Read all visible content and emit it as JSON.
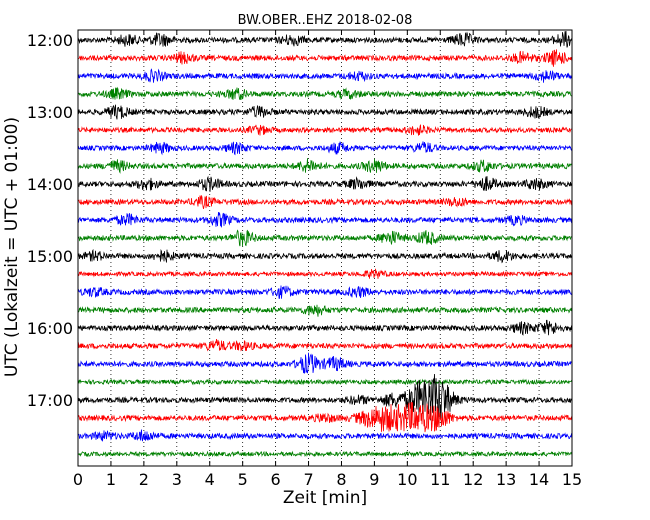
{
  "chart_data": {
    "type": "line",
    "title": "BW.OBER..EHZ 2018-02-08",
    "xlabel": "Zeit  [min]",
    "ylabel": "UTC (Lokalzeit = UTC + 01:00)",
    "xlim": [
      0,
      15
    ],
    "x_ticks": [
      "0",
      "1",
      "2",
      "3",
      "4",
      "5",
      "6",
      "7",
      "8",
      "9",
      "10",
      "11",
      "12",
      "13",
      "14",
      "15"
    ],
    "y_ticks": [
      "12:00",
      "13:00",
      "14:00",
      "15:00",
      "16:00",
      "17:00"
    ],
    "grid": "vertical dotted",
    "trace_colors": [
      "#000000",
      "#ff0000",
      "#0000ff",
      "#008000"
    ],
    "traces": [
      {
        "start": "12:00",
        "amplitude": 1.0,
        "events": [
          [
            1.5,
            2
          ],
          [
            2.5,
            2.5
          ],
          [
            6.5,
            2
          ],
          [
            11.7,
            2.5
          ],
          [
            14.8,
            3
          ]
        ]
      },
      {
        "start": "12:15",
        "amplitude": 1.0,
        "events": [
          [
            3.2,
            2
          ],
          [
            13.5,
            2
          ],
          [
            14.5,
            3
          ]
        ]
      },
      {
        "start": "12:30",
        "amplitude": 1.0,
        "events": [
          [
            2.3,
            2
          ],
          [
            8.5,
            1.5
          ],
          [
            14.2,
            2
          ]
        ]
      },
      {
        "start": "12:45",
        "amplitude": 1.0,
        "events": [
          [
            1.2,
            1.8
          ],
          [
            4.8,
            2
          ],
          [
            8.2,
            1.5
          ]
        ]
      },
      {
        "start": "13:00",
        "amplitude": 1.0,
        "events": [
          [
            1.2,
            2.5
          ],
          [
            5.5,
            2
          ],
          [
            13.9,
            2
          ]
        ]
      },
      {
        "start": "13:15",
        "amplitude": 0.9,
        "events": [
          [
            5.5,
            1.5
          ],
          [
            10.3,
            1.8
          ]
        ]
      },
      {
        "start": "13:30",
        "amplitude": 0.9,
        "events": [
          [
            2.5,
            2
          ],
          [
            4.8,
            2
          ],
          [
            7.9,
            2
          ],
          [
            10.5,
            2
          ]
        ]
      },
      {
        "start": "13:45",
        "amplitude": 1.0,
        "events": [
          [
            1.2,
            2
          ],
          [
            7.0,
            2.5
          ],
          [
            9.0,
            2.5
          ],
          [
            12.3,
            2
          ]
        ]
      },
      {
        "start": "14:00",
        "amplitude": 1.0,
        "events": [
          [
            2.1,
            2
          ],
          [
            4.0,
            2.5
          ],
          [
            8.5,
            2
          ],
          [
            12.4,
            2.5
          ],
          [
            13.9,
            2
          ]
        ]
      },
      {
        "start": "14:15",
        "amplitude": 1.0,
        "events": [
          [
            3.8,
            2
          ],
          [
            11.5,
            1.5
          ]
        ]
      },
      {
        "start": "14:30",
        "amplitude": 1.0,
        "events": [
          [
            1.5,
            2
          ],
          [
            4.3,
            2.5
          ],
          [
            13.3,
            1.5
          ]
        ]
      },
      {
        "start": "14:45",
        "amplitude": 1.0,
        "events": [
          [
            5.0,
            3
          ],
          [
            9.5,
            2.5
          ],
          [
            10.6,
            2.5
          ]
        ]
      },
      {
        "start": "15:00",
        "amplitude": 1.0,
        "events": [
          [
            0.5,
            1.5
          ],
          [
            2.6,
            2
          ],
          [
            12.9,
            2
          ]
        ]
      },
      {
        "start": "15:15",
        "amplitude": 0.8,
        "events": [
          [
            9.0,
            1.5
          ]
        ]
      },
      {
        "start": "15:30",
        "amplitude": 1.0,
        "events": [
          [
            0.5,
            1.5
          ],
          [
            6.2,
            2
          ],
          [
            8.5,
            1.8
          ]
        ]
      },
      {
        "start": "15:45",
        "amplitude": 1.0,
        "events": [
          [
            7.2,
            2
          ]
        ]
      },
      {
        "start": "16:00",
        "amplitude": 1.0,
        "events": [
          [
            13.5,
            2
          ],
          [
            14.3,
            2.5
          ]
        ]
      },
      {
        "start": "16:15",
        "amplitude": 1.0,
        "events": [
          [
            4.2,
            2
          ],
          [
            5.0,
            1.5
          ]
        ]
      },
      {
        "start": "16:30",
        "amplitude": 1.0,
        "events": [
          [
            7.0,
            4
          ],
          [
            7.8,
            2.5
          ]
        ]
      },
      {
        "start": "16:45",
        "amplitude": 0.8,
        "events": []
      },
      {
        "start": "17:00",
        "amplitude": 1.0,
        "events": [
          [
            10.6,
            9
          ],
          [
            11.0,
            4
          ],
          [
            8.5,
            1.5
          ],
          [
            9.5,
            2
          ]
        ]
      },
      {
        "start": "17:15",
        "amplitude": 1.0,
        "events": [
          [
            9.2,
            5
          ],
          [
            10.3,
            6
          ],
          [
            11.0,
            3
          ],
          [
            7.5,
            1.5
          ]
        ]
      },
      {
        "start": "17:30",
        "amplitude": 1.0,
        "events": [
          [
            0.8,
            1.5
          ],
          [
            2.0,
            2
          ]
        ]
      },
      {
        "start": "17:45",
        "amplitude": 0.8,
        "events": []
      }
    ]
  }
}
